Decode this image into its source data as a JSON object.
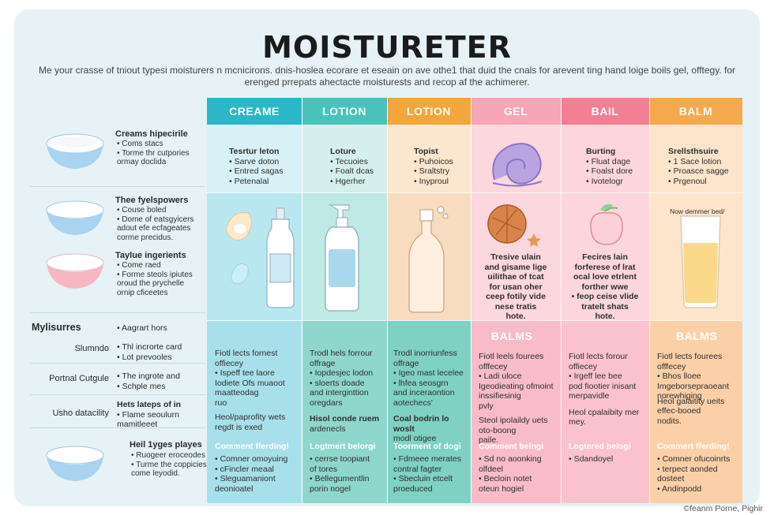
{
  "title": "MOISTURETER",
  "subtitle": "Me your crasse of tniout typesi moisturers n mcnicirons. dnis-hoslea ecorare et eseain on ave othe1 that duid the cnals for arevent ting hand loige boils gel, offtegy. for erenged prrepats ahectacte moisturests and recop af the achimerer.",
  "colors": {
    "creame": "#2ab8c8",
    "lotion1": "#49c2bc",
    "lotion2": "#f2a63c",
    "gel": "#f6a6b6",
    "bail": "#f27f93",
    "balm": "#f5a94f"
  },
  "columns": {
    "creame": {
      "header": "CREAME",
      "top": [
        "Tesrtur leton",
        "• Sarve doton",
        "• Entred sagas",
        "• Petenalal"
      ],
      "mid": [],
      "bottom_title": "",
      "bottom": [
        "Fiotl lects fornest",
        "offiecey",
        "• Ispeff tee laore",
        "Iodiete Ofs muaoot",
        "maatteodag",
        "ruo",
        "Heol/paprofity wets",
        "regdt is exed"
      ],
      "sec_title": "Comment fferding!",
      "sec": [
        "• Comner omoyuing",
        "• cFincler meaal",
        "• Sleguamaniont",
        "deonioatel"
      ]
    },
    "lotion1": {
      "header": "LOTION",
      "top": [
        "Loture",
        "• Tecuoies",
        "• Foalt dcas",
        "• Hgerher"
      ],
      "mid": [],
      "bottom": [
        "Trodl hels forrour",
        "offrage",
        "• Iopdesjec lodon",
        "• sloerts doade",
        "and interginttion",
        "oregdars",
        "Hisol conde ruem",
        "ardenecls"
      ],
      "sec_title": "Logtmert belorgi",
      "sec": [
        "• cerrse toopiant",
        "of tores",
        "• Bellegumentlin",
        "porin nogel"
      ]
    },
    "lotion2": {
      "header": "LOTION",
      "top": [
        "Topist",
        "• Puhoicos",
        "• Sraltstry",
        "• Inyproul"
      ],
      "mid": [],
      "bottom": [
        "Trodl inorriunfess",
        "offrage",
        "• Igeo mast lecelee",
        "• lhfea seosgrn",
        "and inceraontion",
        "aotechecs'",
        "Coal bodrin lo woslt",
        "modl otigee"
      ],
      "sec_title": "Toorment of dogi",
      "sec": [
        "• Fdmeee merates",
        "contral fagter",
        "• Sbecluin etcelt",
        "proeduced"
      ]
    },
    "gel": {
      "header": "GEL",
      "top": [],
      "mid": [
        "Tresive ulain",
        "and gisame lige",
        "uilithae of tcat",
        "for usan oher",
        "ceep fotily vide",
        "nese tratis",
        "hote."
      ],
      "big": "BALMS",
      "bottom": [
        "Fiotl leels fourees",
        "offfecey",
        "• Ladi uloce",
        "Igeodieating ofmoint",
        "inssifiesinig",
        "pvly",
        "Steol ipolaildy uets",
        "oto-boong",
        "paile."
      ],
      "sec_title": "Comment belngi",
      "sec": [
        "• Sd no aoonking",
        "olfdeel",
        "• Becloin notet",
        "oteun hogiel"
      ]
    },
    "bail": {
      "header": "BAIL",
      "top": [
        "Burting",
        "• Fluat dage",
        "• Foalst dore",
        "• Ivotelogr"
      ],
      "mid": [
        "Fecires lain",
        "forferese of lrat",
        "ocal love etrlent",
        "forther wwe",
        "• feop ceise vlide",
        "tratelt shats",
        "hote."
      ],
      "bottom": [
        "Fiotl lects forour",
        "offiecey",
        "• Irgeff lee bee",
        "pod fiootier inisant",
        "merpavidle",
        "Heol cpalaibity mer",
        "mey."
      ],
      "sec_title": "Logtered belogi",
      "sec": [
        "• Sdandoyel"
      ]
    },
    "balm": {
      "header": "BALM",
      "top": [
        "Srellsthsuire",
        "• 1 Sace lotion",
        "• Proasce sagge",
        "• Prgenoul"
      ],
      "mid": [
        "Now demmer bed/"
      ],
      "big": "BALMS",
      "bottom": [
        "Fiotl lects fourees",
        "offfecey",
        "• Bhos lloee",
        "Imgeborsepraoeant",
        "norewhiging",
        "",
        "Heol galaitity ueits",
        "effec-booed",
        "nodits."
      ],
      "sec_title": "Commert fferding!",
      "sec": [
        "• Comner ofucoinrts",
        "• terpect aonded",
        "dosteet",
        "• Andinpodd"
      ]
    }
  },
  "left": {
    "rows": [
      {
        "title": "Creams hipecirile",
        "lines": [
          "• Coms stacs",
          "• Torme thr cutpories",
          "ormay doclida"
        ]
      },
      {
        "title": "Thee fyelspowers",
        "lines": [
          "• Couse boled",
          "• Dome of eatsgyicers",
          "adout efe ecfageates",
          "corme precidus."
        ]
      },
      {
        "title": "Taylue ingerients",
        "lines": [
          "• Come raed",
          "• Forme steols ipiutes",
          "oroud the prychelle",
          "ornip cficeetes"
        ]
      },
      {
        "title": "Heil 1yges playes",
        "lines": [
          "• Ruogeer eroceodes",
          "• Turme the coppicies",
          "come leyodid."
        ]
      }
    ],
    "section_label": "Mylisurres",
    "section_value": "• Aagrart hors",
    "labels": [
      {
        "label": "Slumndo",
        "lines": [
          "• Thl incrorte card",
          "• Lot prevooles"
        ]
      },
      {
        "label": "Portnal Cutgule",
        "lines": [
          "• The ingrote and",
          "• Schple mes"
        ]
      },
      {
        "label": "Usho datacility",
        "lines": [
          "Hets lateps of in",
          "• Flame seoulurn",
          "mamitleeet"
        ]
      }
    ]
  },
  "credit": "©feanm Porne, Pighir"
}
